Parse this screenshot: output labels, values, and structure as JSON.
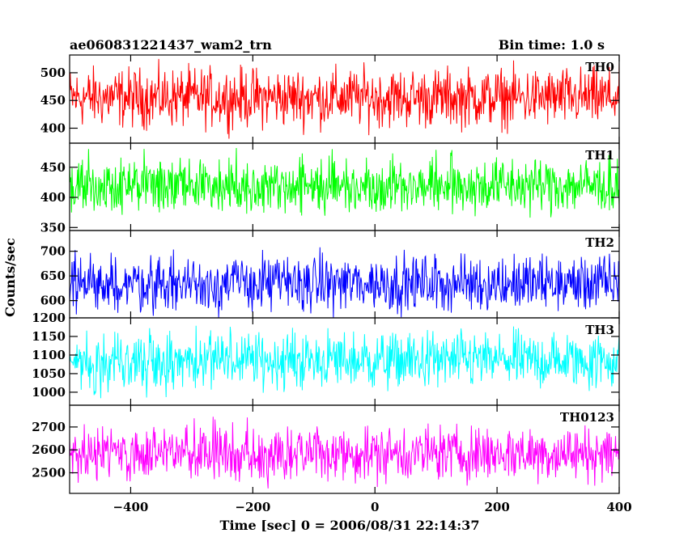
{
  "header": {
    "left_title": "ae060831221437_wam2_trn",
    "right_title": "Bin time: 1.0 s"
  },
  "axes": {
    "ylabel": "Counts/sec",
    "xlabel": "Time [sec] 0 = 2006/08/31 22:14:37"
  },
  "chart_data": {
    "type": "line",
    "x": {
      "min": -500,
      "max": 400,
      "step": 1,
      "ticks": [
        -400,
        -200,
        0,
        200,
        400
      ],
      "tick_labels": [
        "−400",
        "−200",
        "0",
        "200",
        "400"
      ]
    },
    "grid": false,
    "series": [
      {
        "name": "TH0",
        "color": "#ff0000",
        "mean": 455,
        "spread": 26,
        "ylim": [
          373,
          532
        ],
        "ticks": [
          400,
          450,
          500
        ],
        "tick_labels": [
          "400",
          "450",
          "500"
        ]
      },
      {
        "name": "TH1",
        "color": "#00ff00",
        "mean": 420,
        "spread": 23,
        "ylim": [
          345,
          490
        ],
        "ticks": [
          350,
          400,
          450
        ],
        "tick_labels": [
          "350",
          "400",
          "450"
        ]
      },
      {
        "name": "TH2",
        "color": "#0000ff",
        "mean": 635,
        "spread": 28,
        "ylim": [
          565,
          742
        ],
        "ticks": [
          600,
          650,
          700
        ],
        "tick_labels": [
          "600",
          "650",
          "700"
        ]
      },
      {
        "name": "TH3",
        "color": "#00ffff",
        "mean": 1085,
        "spread": 38,
        "ylim": [
          965,
          1200
        ],
        "ticks": [
          1000,
          1050,
          1100,
          1150,
          1200
        ],
        "tick_labels": [
          "1000",
          "1050",
          "1100",
          "1150",
          "1200"
        ]
      },
      {
        "name": "TH0123",
        "color": "#ff00ff",
        "mean": 2585,
        "spread": 60,
        "ylim": [
          2410,
          2795
        ],
        "ticks": [
          2500,
          2600,
          2700
        ],
        "tick_labels": [
          "2500",
          "2600",
          "2700"
        ]
      }
    ]
  }
}
